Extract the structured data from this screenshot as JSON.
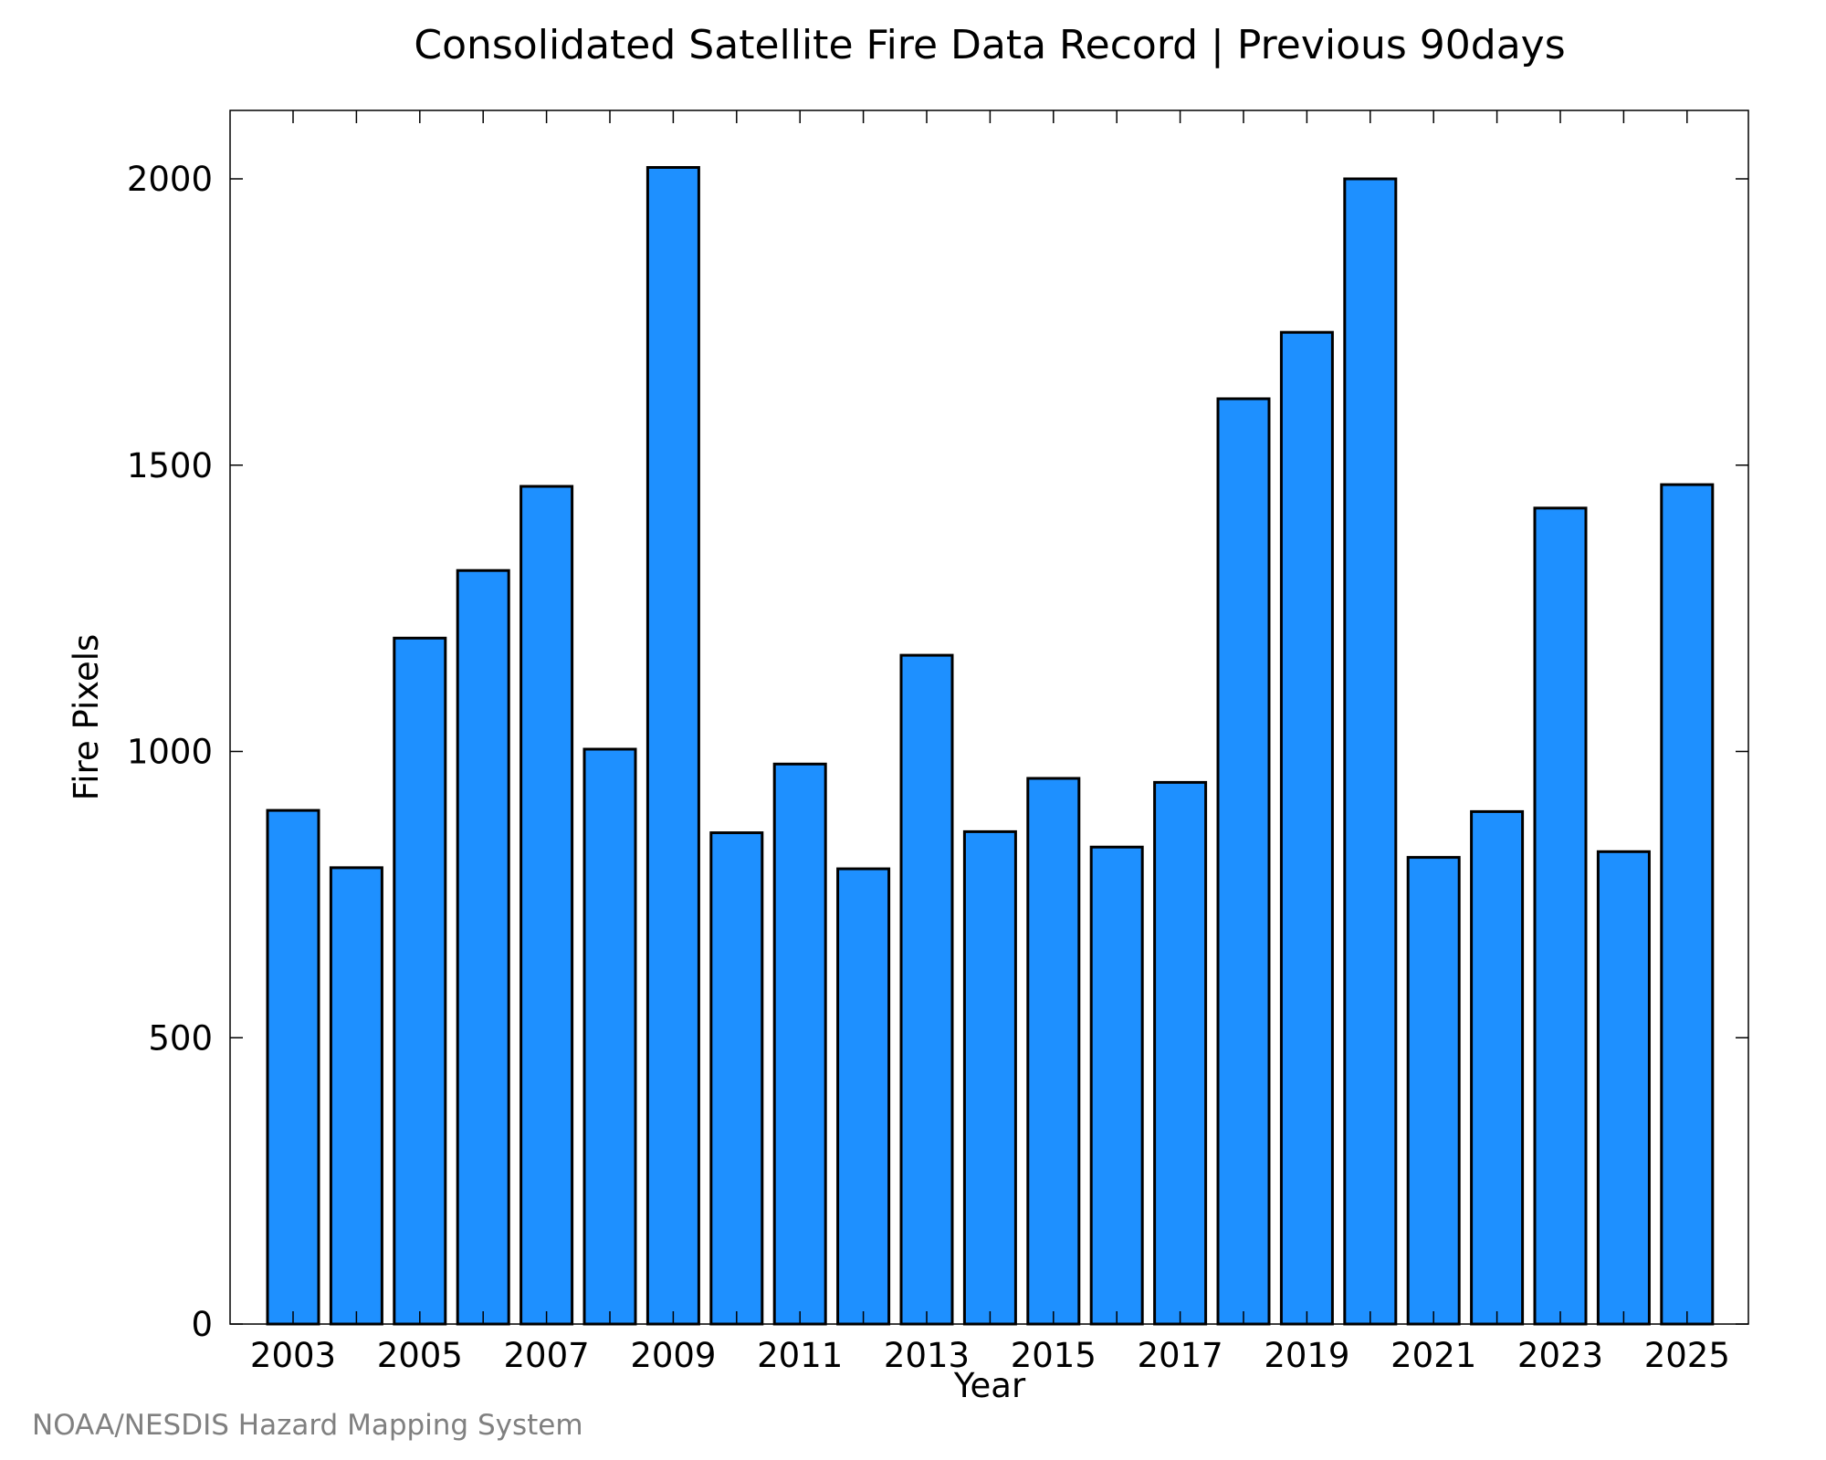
{
  "chart_data": {
    "type": "bar",
    "title": "Consolidated Satellite Fire Data Record | Previous 90days",
    "xlabel": "Year",
    "ylabel": "Fire Pixels",
    "categories": [
      "2003",
      "2004",
      "2005",
      "2006",
      "2007",
      "2008",
      "2009",
      "2010",
      "2011",
      "2012",
      "2013",
      "2014",
      "2015",
      "2016",
      "2017",
      "2018",
      "2019",
      "2020",
      "2021",
      "2022",
      "2023",
      "2024",
      "2025"
    ],
    "values": [
      897,
      797,
      1198,
      1316,
      1463,
      1004,
      2020,
      858,
      978,
      795,
      1168,
      860,
      953,
      833,
      946,
      1616,
      1732,
      2000,
      815,
      895,
      1425,
      825,
      1466
    ],
    "x_tick_labels": [
      "2003",
      "2005",
      "2007",
      "2009",
      "2011",
      "2013",
      "2015",
      "2017",
      "2019",
      "2021",
      "2023",
      "2025"
    ],
    "y_ticks": [
      0,
      500,
      1000,
      1500,
      2000
    ],
    "ylim": [
      0,
      2100
    ],
    "grid": false,
    "bar_color": "#1e90ff",
    "bar_edge_color": "#000000"
  },
  "footer": {
    "credit": "NOAA/NESDIS Hazard Mapping System"
  }
}
